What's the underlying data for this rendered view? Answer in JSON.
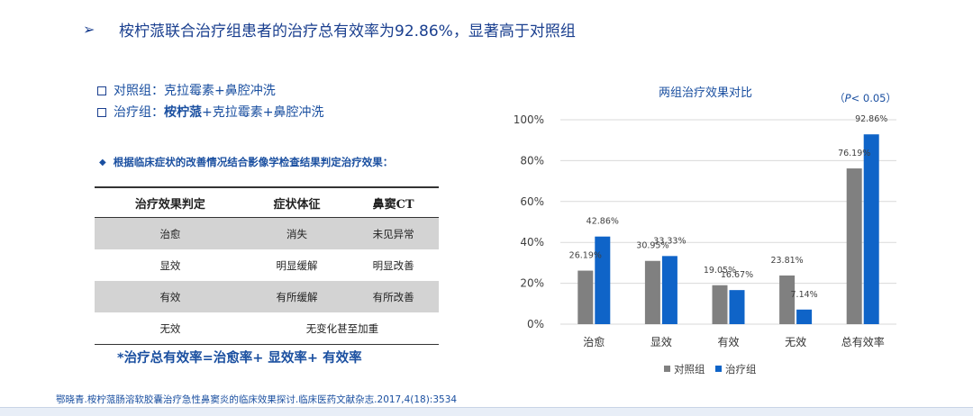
{
  "header": {
    "arrow": "➢",
    "title": "桉柠蒎联合治疗组患者的治疗总有效率为92.86%，显著高于对照组"
  },
  "groups": {
    "control": {
      "label": "对照组：",
      "desc": "克拉霉素+鼻腔冲洗"
    },
    "treatment": {
      "label": "治疗组：",
      "drug": "桉柠蒎",
      "desc": "+克拉霉素+鼻腔冲洗"
    }
  },
  "criteria_note": "根据临床症状的改善情况结合影像学检查结果判定治疗效果：",
  "criteria_table": {
    "headers": [
      "治疗效果判定",
      "症状体征",
      "鼻窦CT"
    ],
    "rows": [
      [
        "治愈",
        "消失",
        "未见异常"
      ],
      [
        "显效",
        "明显缓解",
        "明显改善"
      ],
      [
        "有效",
        "有所缓解",
        "有所改善"
      ],
      [
        "无效",
        "无变化甚至加重"
      ]
    ]
  },
  "formula": "*治疗总有效率=治愈率+ 显效率+ 有效率",
  "reference": "鄂晓青.桉柠蒎肠溶软胶囊治疗急性鼻窦炎的临床效果探讨.临床医药文献杂志.2017,4(18):3534",
  "chart_data": {
    "type": "bar",
    "title": "两组治疗效果对比",
    "annotation": {
      "prefix": "（",
      "p": "P",
      "suffix": "< 0.05）"
    },
    "categories": [
      "治愈",
      "显效",
      "有效",
      "无效",
      "总有效率"
    ],
    "series": [
      {
        "name": "对照组",
        "color": "#808080",
        "values": [
          26.19,
          30.95,
          19.05,
          23.81,
          76.19
        ],
        "labels": [
          "26.19%",
          "30.95%",
          "19.05%",
          "23.81%",
          "76.19%"
        ]
      },
      {
        "name": "治疗组",
        "color": "#0f64c8",
        "values": [
          42.86,
          33.33,
          16.67,
          7.14,
          92.86
        ],
        "labels": [
          "42.86%",
          "33.33%",
          "16.67%",
          "7.14%",
          "92.86%"
        ]
      }
    ],
    "ylim": [
      0,
      100
    ],
    "yticks": [
      0,
      20,
      40,
      60,
      80,
      100
    ],
    "ytick_labels": [
      "0%",
      "20%",
      "40%",
      "60%",
      "80%",
      "100%"
    ],
    "grid": true,
    "legend": "bottom"
  }
}
